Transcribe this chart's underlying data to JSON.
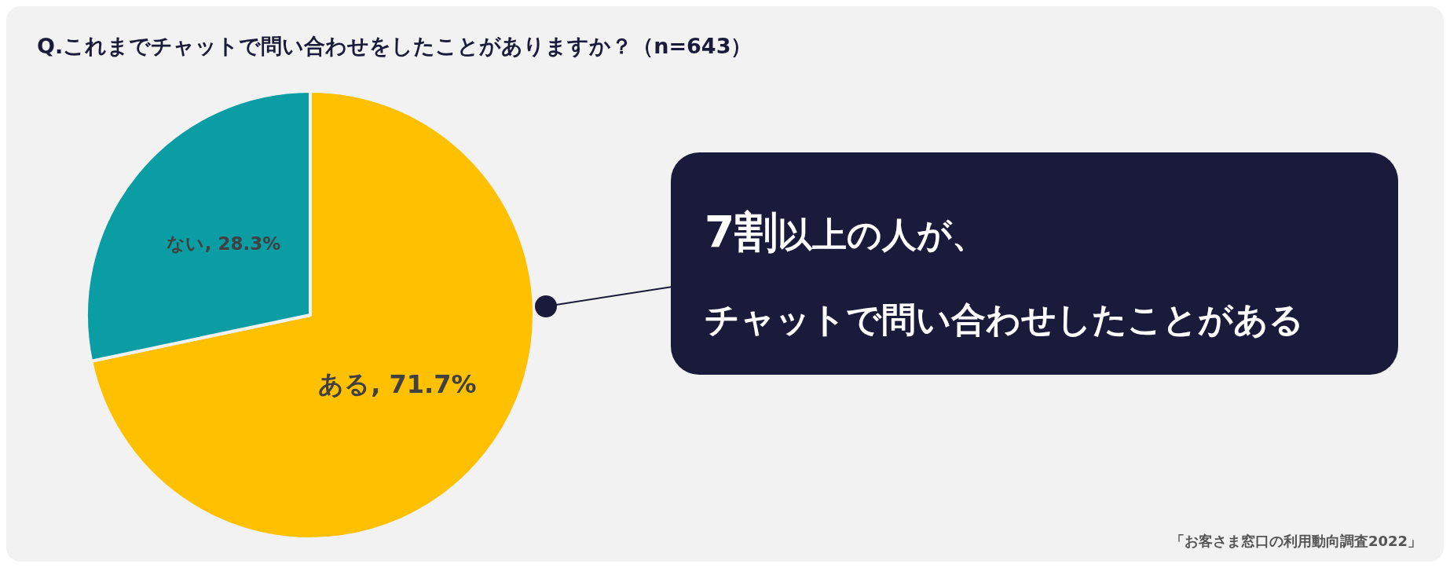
{
  "chart_data": {
    "type": "pie",
    "title": "Q.これまでチャットで問い合わせをしたことがありますか？（n=643）",
    "categories": [
      "ある",
      "ない"
    ],
    "values": [
      71.7,
      28.3
    ],
    "colors": [
      "#ffc000",
      "#0a9da4"
    ],
    "value_labels": [
      ", 71.7%",
      ", 28.3%"
    ],
    "annotations": [
      "**7割**以上の人が、",
      "チャットで問い合わせしたことがある",
      "「お客さま窓口の利用動向調査2022」"
    ]
  }
}
